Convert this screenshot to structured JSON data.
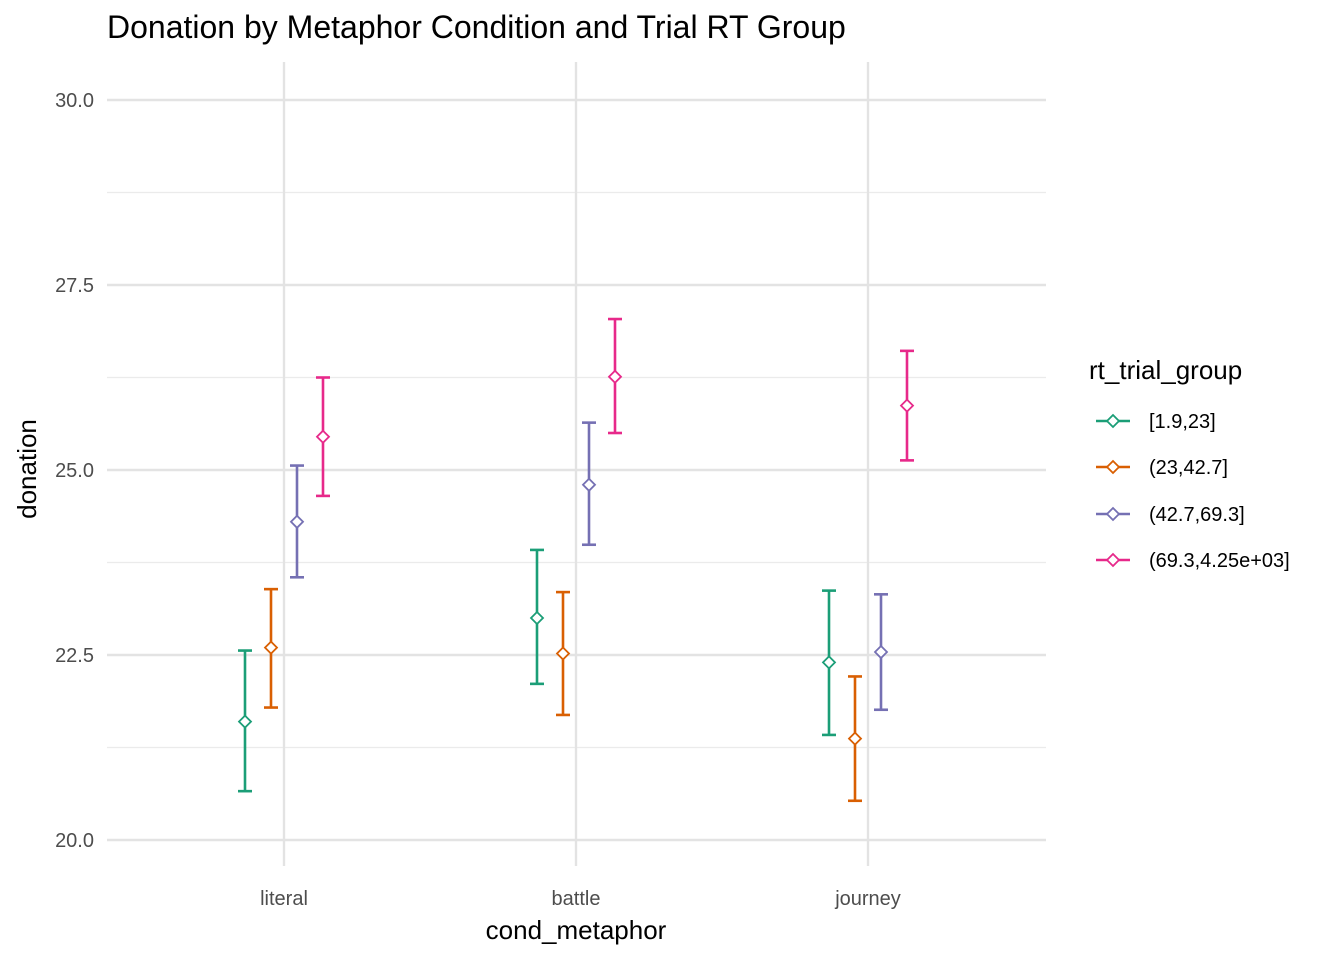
{
  "chart_data": {
    "type": "scatter",
    "title": "Donation by Metaphor Condition and Trial RT Group",
    "xlabel": "cond_metaphor",
    "ylabel": "donation",
    "categories": [
      "literal",
      "battle",
      "journey"
    ],
    "ylim": [
      19.6,
      30.5
    ],
    "yticks": [
      "20.0",
      "22.5",
      "25.0",
      "27.5",
      "30.0"
    ],
    "grid": true,
    "legend": {
      "title": "rt_trial_group",
      "position": "right"
    },
    "series": [
      {
        "name": "[1.9,23]",
        "color": "#1b9e77",
        "values": [
          21.6,
          23.0,
          22.4
        ],
        "lower": [
          20.66,
          22.11,
          21.42
        ],
        "upper": [
          22.56,
          23.92,
          23.37
        ]
      },
      {
        "name": "(23,42.7]",
        "color": "#d95f02",
        "values": [
          22.6,
          22.52,
          21.37
        ],
        "lower": [
          21.79,
          21.69,
          20.53
        ],
        "upper": [
          23.39,
          23.35,
          22.21
        ]
      },
      {
        "name": "(42.7,69.3]",
        "color": "#7570b3",
        "values": [
          24.3,
          24.8,
          22.54
        ],
        "lower": [
          23.55,
          23.99,
          21.76
        ],
        "upper": [
          25.06,
          25.64,
          23.32
        ]
      },
      {
        "name": "(69.3,4.25e+03]",
        "color": "#e7298a",
        "values": [
          25.45,
          26.26,
          25.87
        ],
        "lower": [
          24.65,
          25.5,
          25.13
        ],
        "upper": [
          26.25,
          27.04,
          26.61
        ]
      }
    ]
  }
}
